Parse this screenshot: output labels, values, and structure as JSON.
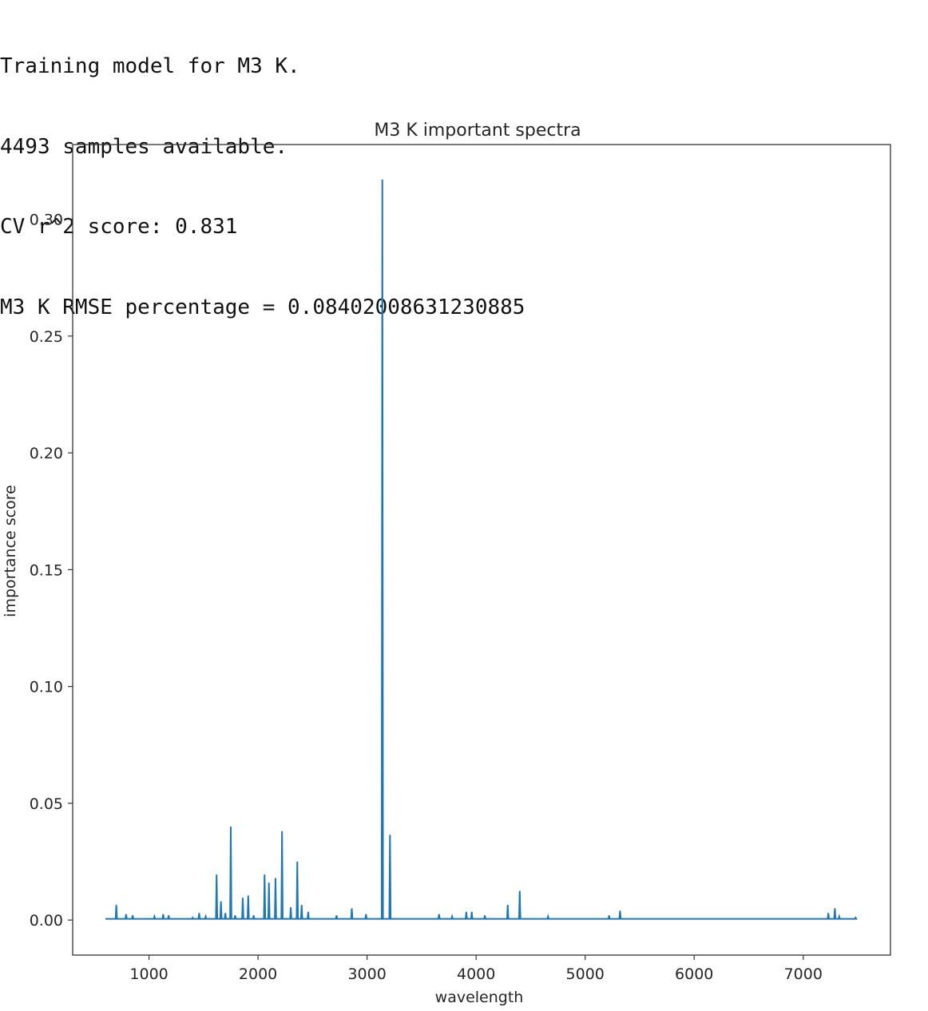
{
  "console": {
    "lines": [
      "Training model for M3 K.",
      "4493 samples available.",
      "CV r^2 score: 0.831",
      "M3 K RMSE percentage = 0.08402008631230885"
    ]
  },
  "chart_data": {
    "type": "line",
    "title": "M3 K important spectra",
    "xlabel": "wavelength",
    "ylabel": "importance score",
    "xlim": [
      300,
      7800
    ],
    "ylim": [
      -0.015,
      0.332
    ],
    "grid": false,
    "legend": "none",
    "xticks": [
      1000,
      2000,
      3000,
      4000,
      5000,
      6000,
      7000
    ],
    "yticks": [
      0.0,
      0.05,
      0.1,
      0.15,
      0.2,
      0.25,
      0.3
    ],
    "ytick_labels": [
      "0.00",
      "0.05",
      "0.10",
      "0.15",
      "0.20",
      "0.25",
      "0.30"
    ],
    "series": [
      {
        "color": "#1f77b4",
        "baseline": 0.0005,
        "peaks": [
          [
            700,
            0.0065
          ],
          [
            790,
            0.0025
          ],
          [
            850,
            0.002
          ],
          [
            1050,
            0.0015
          ],
          [
            1130,
            0.0025
          ],
          [
            1180,
            0.002
          ],
          [
            1400,
            0.001
          ],
          [
            1460,
            0.003
          ],
          [
            1520,
            0.0015
          ],
          [
            1620,
            0.0195
          ],
          [
            1660,
            0.008
          ],
          [
            1700,
            0.003
          ],
          [
            1750,
            0.04
          ],
          [
            1790,
            0.002
          ],
          [
            1860,
            0.0095
          ],
          [
            1910,
            0.0105
          ],
          [
            1960,
            0.002
          ],
          [
            2060,
            0.0195
          ],
          [
            2100,
            0.016
          ],
          [
            2160,
            0.018
          ],
          [
            2220,
            0.038
          ],
          [
            2300,
            0.0055
          ],
          [
            2360,
            0.025
          ],
          [
            2400,
            0.0065
          ],
          [
            2460,
            0.0035
          ],
          [
            2720,
            0.002
          ],
          [
            2860,
            0.005
          ],
          [
            2990,
            0.0025
          ],
          [
            3140,
            0.317
          ],
          [
            3210,
            0.0365
          ],
          [
            3660,
            0.0025
          ],
          [
            3780,
            0.0015
          ],
          [
            3910,
            0.0035
          ],
          [
            3960,
            0.0035
          ],
          [
            4080,
            0.002
          ],
          [
            4290,
            0.0065
          ],
          [
            4400,
            0.0125
          ],
          [
            4660,
            0.0015
          ],
          [
            5220,
            0.002
          ],
          [
            5320,
            0.004
          ],
          [
            7230,
            0.003
          ],
          [
            7290,
            0.005
          ],
          [
            7330,
            0.0015
          ],
          [
            7480,
            0.001
          ]
        ],
        "x_end": 7480,
        "x_start": 600
      }
    ]
  }
}
